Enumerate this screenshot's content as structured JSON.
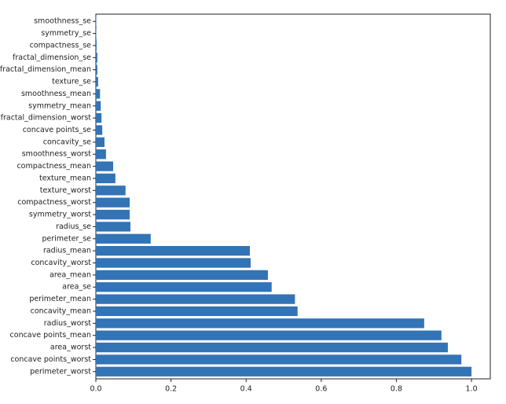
{
  "chart_data": {
    "type": "barh",
    "categories": [
      "perimeter_worst",
      "concave points_worst",
      "area_worst",
      "concave points_mean",
      "radius_worst",
      "concavity_mean",
      "perimeter_mean",
      "area_se",
      "area_mean",
      "concavity_worst",
      "radius_mean",
      "perimeter_se",
      "radius_se",
      "symmetry_worst",
      "compactness_worst",
      "texture_worst",
      "texture_mean",
      "compactness_mean",
      "smoothness_worst",
      "concavity_se",
      "concave points_se",
      "fractal_dimension_worst",
      "symmetry_mean",
      "smoothness_mean",
      "texture_se",
      "fractal_dimension_mean",
      "fractal_dimension_se",
      "compactness_se",
      "symmetry_se",
      "smoothness_se"
    ],
    "values": [
      1.0,
      0.973,
      0.937,
      0.92,
      0.874,
      0.537,
      0.53,
      0.468,
      0.458,
      0.412,
      0.41,
      0.146,
      0.092,
      0.09,
      0.09,
      0.079,
      0.052,
      0.046,
      0.027,
      0.023,
      0.017,
      0.015,
      0.013,
      0.011,
      0.006,
      0.004,
      0.004,
      0.002,
      0.001,
      0.001
    ],
    "color": "#3274b5",
    "xlim": [
      0,
      1.05
    ],
    "xticks": [
      {
        "value": 0,
        "label": "0.0"
      },
      0.2,
      0.4,
      0.6,
      0.8,
      {
        "value": 1,
        "label": "1.0"
      }
    ]
  }
}
